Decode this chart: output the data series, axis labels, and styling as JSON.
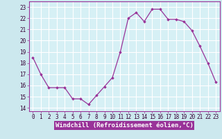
{
  "x": [
    0,
    1,
    2,
    3,
    4,
    5,
    6,
    7,
    8,
    9,
    10,
    11,
    12,
    13,
    14,
    15,
    16,
    17,
    18,
    19,
    20,
    21,
    22,
    23
  ],
  "y": [
    18.5,
    17.0,
    15.8,
    15.8,
    15.8,
    14.8,
    14.8,
    14.3,
    15.1,
    15.9,
    16.7,
    19.0,
    22.0,
    22.5,
    21.7,
    22.8,
    22.8,
    21.9,
    21.9,
    21.7,
    20.9,
    19.5,
    18.0,
    16.3
  ],
  "line_color": "#993399",
  "marker": "D",
  "markersize": 1.8,
  "linewidth": 0.9,
  "xlabel": "Windchill (Refroidissement éolien,°C)",
  "xlabel_fontsize": 6.5,
  "ylabel_ticks": [
    14,
    15,
    16,
    17,
    18,
    19,
    20,
    21,
    22,
    23
  ],
  "xlabel_ticks": [
    0,
    1,
    2,
    3,
    4,
    5,
    6,
    7,
    8,
    9,
    10,
    11,
    12,
    13,
    14,
    15,
    16,
    17,
    18,
    19,
    20,
    21,
    22,
    23
  ],
  "xlim": [
    -0.5,
    23.5
  ],
  "ylim": [
    13.7,
    23.5
  ],
  "bg_color": "#cce8ee",
  "plot_bg_color": "#d6f0f5",
  "grid_color": "#ffffff",
  "tick_fontsize": 5.5,
  "xlabel_bg": "#993399",
  "xlabel_fg": "#ffffff"
}
